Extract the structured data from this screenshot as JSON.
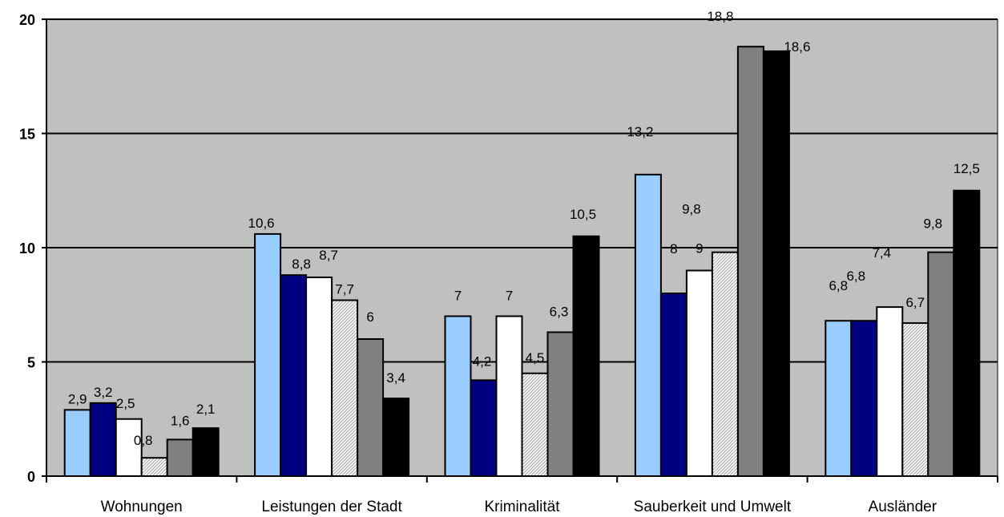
{
  "chart_data": {
    "type": "bar",
    "categories": [
      "Wohnungen",
      "Leistungen der Stadt",
      "Kriminalität",
      "Sauberkeit und Umwelt",
      "Ausländer"
    ],
    "series": [
      {
        "values": [
          2.9,
          10.6,
          7,
          13.2,
          6.8
        ],
        "labels": [
          "2,9",
          "10,6",
          "7",
          "13,2",
          "6,8"
        ],
        "color": "#99ccff",
        "pattern": "solid"
      },
      {
        "values": [
          3.2,
          8.8,
          4.2,
          8,
          6.8
        ],
        "labels": [
          "3,2",
          "8,8",
          "4,2",
          "8",
          "6,8"
        ],
        "color": "#000080",
        "pattern": "solid"
      },
      {
        "values": [
          2.5,
          8.7,
          7,
          9,
          7.4
        ],
        "labels": [
          "2,5",
          "8,7",
          "7",
          "9",
          "7,4"
        ],
        "color": "#ffffff",
        "pattern": "solid"
      },
      {
        "values": [
          0.8,
          7.7,
          4.5,
          9.8,
          6.7
        ],
        "labels": [
          "0,8",
          "7,7",
          "4,5",
          "9,8",
          "6,7"
        ],
        "color": "#e6e6e6",
        "pattern": "hatched"
      },
      {
        "values": [
          1.6,
          6,
          6.3,
          18.8,
          9.8
        ],
        "labels": [
          "1,6",
          "6",
          "6,3",
          "18,8",
          "9,8"
        ],
        "color": "#808080",
        "pattern": "solid"
      },
      {
        "values": [
          2.1,
          3.4,
          10.5,
          18.6,
          12.5
        ],
        "labels": [
          "2,1",
          "3,4",
          "10,5",
          "18,6",
          "12,5"
        ],
        "color": "#000000",
        "pattern": "solid"
      }
    ],
    "yticks": [
      "0",
      "5",
      "10",
      "15",
      "20"
    ],
    "ylim": [
      0,
      20
    ],
    "plot_background": "#c0c0c0",
    "grid": true,
    "legend": "none"
  }
}
